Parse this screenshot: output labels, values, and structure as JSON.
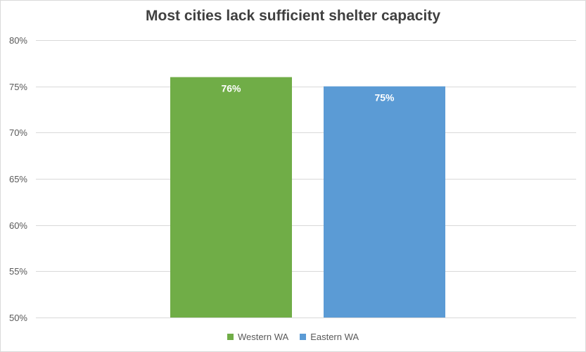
{
  "chart_data": {
    "type": "bar",
    "title": "Most cities lack sufficient shelter capacity",
    "xlabel": "",
    "ylabel": "",
    "ylim": [
      0.5,
      0.8
    ],
    "ytick_step": 0.05,
    "ytick_labels": [
      "50%",
      "55%",
      "60%",
      "65%",
      "70%",
      "75%",
      "80%"
    ],
    "grid": true,
    "legend_position": "bottom",
    "series": [
      {
        "name": "Western WA",
        "value": 0.76,
        "label": "76%",
        "color": "#70AD47"
      },
      {
        "name": "Eastern WA",
        "value": 0.75,
        "label": "75%",
        "color": "#5B9BD5"
      }
    ]
  }
}
